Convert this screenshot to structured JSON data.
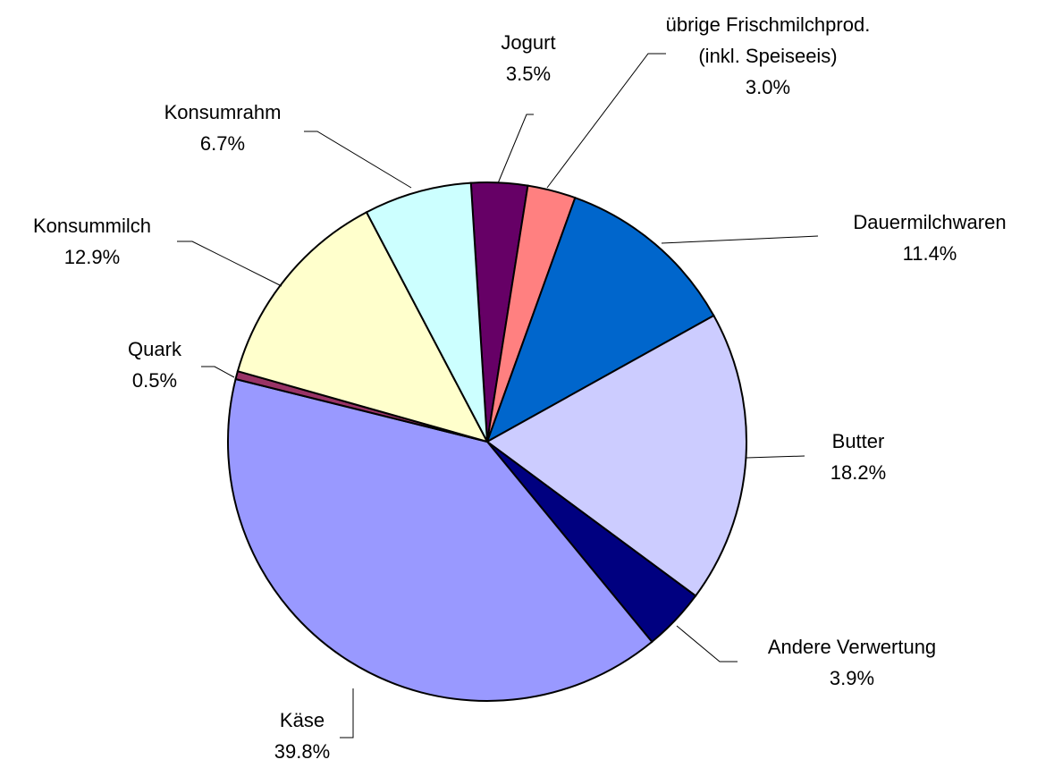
{
  "chart_data": {
    "type": "pie",
    "categories": [
      "Jogurt",
      "übrige Frischmilchprod. (inkl. Speiseeis)",
      "Dauermilchwaren",
      "Butter",
      "Andere Verwertung",
      "Käse",
      "Quark",
      "Konsummilch",
      "Konsumrahm"
    ],
    "values": [
      3.5,
      3.0,
      11.4,
      18.2,
      3.9,
      39.8,
      0.5,
      12.9,
      6.7
    ],
    "value_labels": [
      "3.5%",
      "3.0%",
      "11.4%",
      "18.2%",
      "3.9%",
      "39.8%",
      "0.5%",
      "12.9%",
      "6.7%"
    ],
    "colors": [
      "#660066",
      "#ff8080",
      "#0066cc",
      "#ccccff",
      "#000080",
      "#9999ff",
      "#993366",
      "#ffffcc",
      "#ccffff"
    ]
  }
}
